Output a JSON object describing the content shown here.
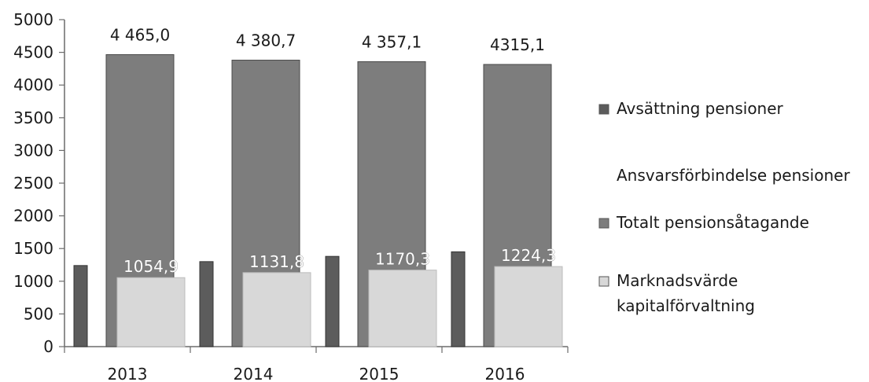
{
  "chart_data": {
    "type": "bar",
    "categories": [
      "2013",
      "2014",
      "2015",
      "2016"
    ],
    "ylim": [
      0,
      5000
    ],
    "yticks": [
      0,
      500,
      1000,
      1500,
      2000,
      2500,
      3000,
      3500,
      4000,
      4500,
      5000
    ],
    "grid": false,
    "legend_position": "right",
    "series": [
      {
        "name": "Avsättning pensioner",
        "values": [
          1240,
          1300,
          1380,
          1450
        ],
        "color": "#5c5c5c"
      },
      {
        "name": "Ansvarsförbindelse pensioner",
        "values": [
          0,
          0,
          0,
          0
        ],
        "color": "#ffffff"
      },
      {
        "name": "Totalt pensionsåtagande",
        "values": [
          4465.0,
          4380.7,
          4357.1,
          4315.1
        ],
        "labels": [
          "4 465,0",
          "4 380,7",
          "4 357,1",
          "4315,1"
        ],
        "color": "#7d7d7d"
      },
      {
        "name": "Marknadsvärde kapitalförvaltning",
        "values": [
          1054.9,
          1131.8,
          1170.3,
          1224.3
        ],
        "labels": [
          "1054,9",
          "1131,8",
          "1170,3",
          "1224,3"
        ],
        "color": "#d8d8d8"
      }
    ],
    "legend": [
      {
        "lines": [
          "Avsättning pensioner"
        ],
        "color": "#5c5c5c",
        "icon": "square-swatch"
      },
      {
        "lines": [
          "Ansvarsförbindelse pensioner"
        ],
        "color": "#ffffff",
        "icon": "square-swatch"
      },
      {
        "lines": [
          "Totalt pensionsåtagande"
        ],
        "color": "#7d7d7d",
        "icon": "square-swatch"
      },
      {
        "lines": [
          "Marknadsvärde",
          "kapitalförvaltning"
        ],
        "color": "#d8d8d8",
        "icon": "square-swatch"
      }
    ]
  }
}
